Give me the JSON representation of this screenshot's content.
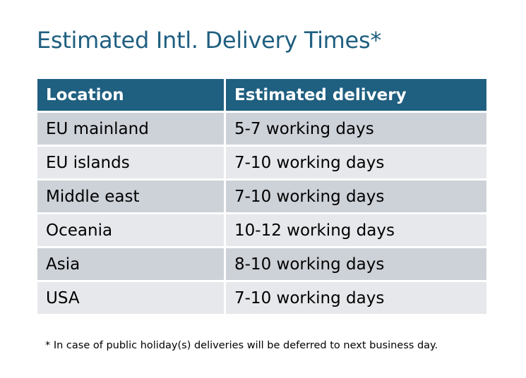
{
  "title": "Estimated Intl. Delivery Times*",
  "table": {
    "headers": [
      "Location",
      "Estimated delivery"
    ],
    "rows": [
      [
        "EU mainland",
        "5-7 working days"
      ],
      [
        "EU islands",
        "7-10 working days"
      ],
      [
        "Middle east",
        "7-10 working days"
      ],
      [
        "Oceania",
        "10-12 working days"
      ],
      [
        "Asia",
        "8-10 working days"
      ],
      [
        "USA",
        "7-10 working days"
      ]
    ]
  },
  "footnote": "* In case of public holiday(s) deliveries will be deferred to next business day.",
  "colors": {
    "header": "#1f5f80",
    "row_dark": "#cdd1d8",
    "row_light": "#e6e8eb"
  }
}
